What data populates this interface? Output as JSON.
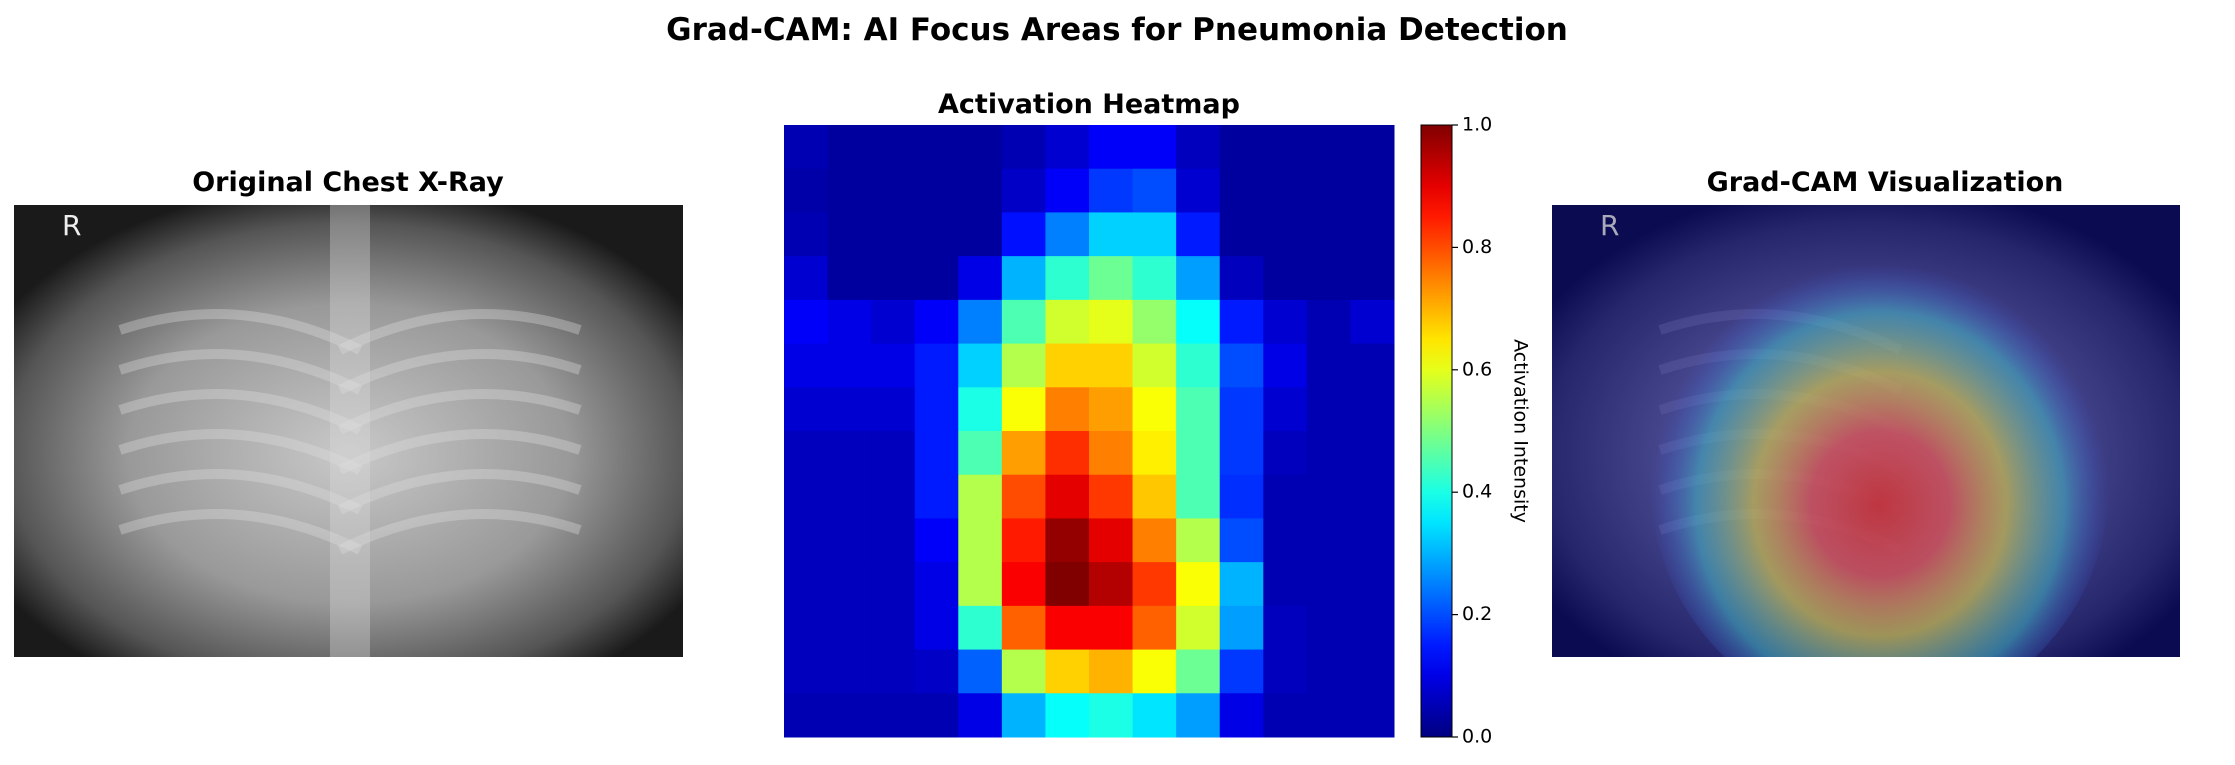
{
  "title": "Grad-CAM: AI Focus Areas for Pneumonia Detection",
  "image_panels": [
    {
      "title": "Original Chest X-Ray",
      "marker": "R"
    },
    {
      "title": "Grad-CAM Visualization",
      "marker": "R"
    }
  ],
  "chart_data": {
    "type": "heatmap",
    "title": "Activation Heatmap",
    "colormap": "jet",
    "colorbar_label": "Activation Intensity",
    "clim": [
      0,
      1
    ],
    "cticks": [
      {
        "value": 0,
        "label": "0.0"
      },
      0.2,
      0.4,
      0.6,
      0.8,
      {
        "value": 1,
        "label": "1.0"
      }
    ],
    "values": [
      [
        0.05,
        0.03,
        0.03,
        0.03,
        0.03,
        0.05,
        0.08,
        0.12,
        0.12,
        0.06,
        0.03,
        0.03,
        0.03,
        0.03
      ],
      [
        0.04,
        0.03,
        0.03,
        0.03,
        0.03,
        0.07,
        0.12,
        0.18,
        0.2,
        0.08,
        0.03,
        0.03,
        0.03,
        0.03
      ],
      [
        0.05,
        0.03,
        0.03,
        0.03,
        0.03,
        0.14,
        0.25,
        0.33,
        0.33,
        0.15,
        0.03,
        0.03,
        0.03,
        0.03
      ],
      [
        0.08,
        0.03,
        0.03,
        0.03,
        0.1,
        0.3,
        0.42,
        0.48,
        0.42,
        0.28,
        0.06,
        0.03,
        0.03,
        0.03
      ],
      [
        0.12,
        0.1,
        0.08,
        0.12,
        0.25,
        0.45,
        0.58,
        0.6,
        0.52,
        0.38,
        0.15,
        0.08,
        0.05,
        0.08
      ],
      [
        0.1,
        0.1,
        0.1,
        0.15,
        0.33,
        0.55,
        0.67,
        0.67,
        0.58,
        0.42,
        0.2,
        0.1,
        0.05,
        0.05
      ],
      [
        0.08,
        0.08,
        0.08,
        0.15,
        0.4,
        0.62,
        0.75,
        0.72,
        0.62,
        0.45,
        0.18,
        0.08,
        0.05,
        0.05
      ],
      [
        0.06,
        0.06,
        0.06,
        0.15,
        0.45,
        0.72,
        0.83,
        0.75,
        0.64,
        0.45,
        0.18,
        0.06,
        0.05,
        0.05
      ],
      [
        0.06,
        0.06,
        0.06,
        0.15,
        0.55,
        0.8,
        0.9,
        0.82,
        0.68,
        0.45,
        0.17,
        0.05,
        0.05,
        0.05
      ],
      [
        0.06,
        0.06,
        0.06,
        0.12,
        0.55,
        0.85,
        0.98,
        0.9,
        0.75,
        0.55,
        0.2,
        0.05,
        0.05,
        0.05
      ],
      [
        0.06,
        0.06,
        0.06,
        0.1,
        0.55,
        0.88,
        1.0,
        0.95,
        0.82,
        0.62,
        0.3,
        0.05,
        0.05,
        0.05
      ],
      [
        0.06,
        0.06,
        0.06,
        0.1,
        0.42,
        0.78,
        0.88,
        0.88,
        0.78,
        0.58,
        0.28,
        0.06,
        0.05,
        0.05
      ],
      [
        0.06,
        0.06,
        0.06,
        0.07,
        0.22,
        0.55,
        0.67,
        0.7,
        0.62,
        0.48,
        0.18,
        0.06,
        0.05,
        0.05
      ],
      [
        0.05,
        0.05,
        0.05,
        0.05,
        0.1,
        0.3,
        0.38,
        0.4,
        0.35,
        0.28,
        0.1,
        0.05,
        0.05,
        0.05
      ]
    ]
  }
}
